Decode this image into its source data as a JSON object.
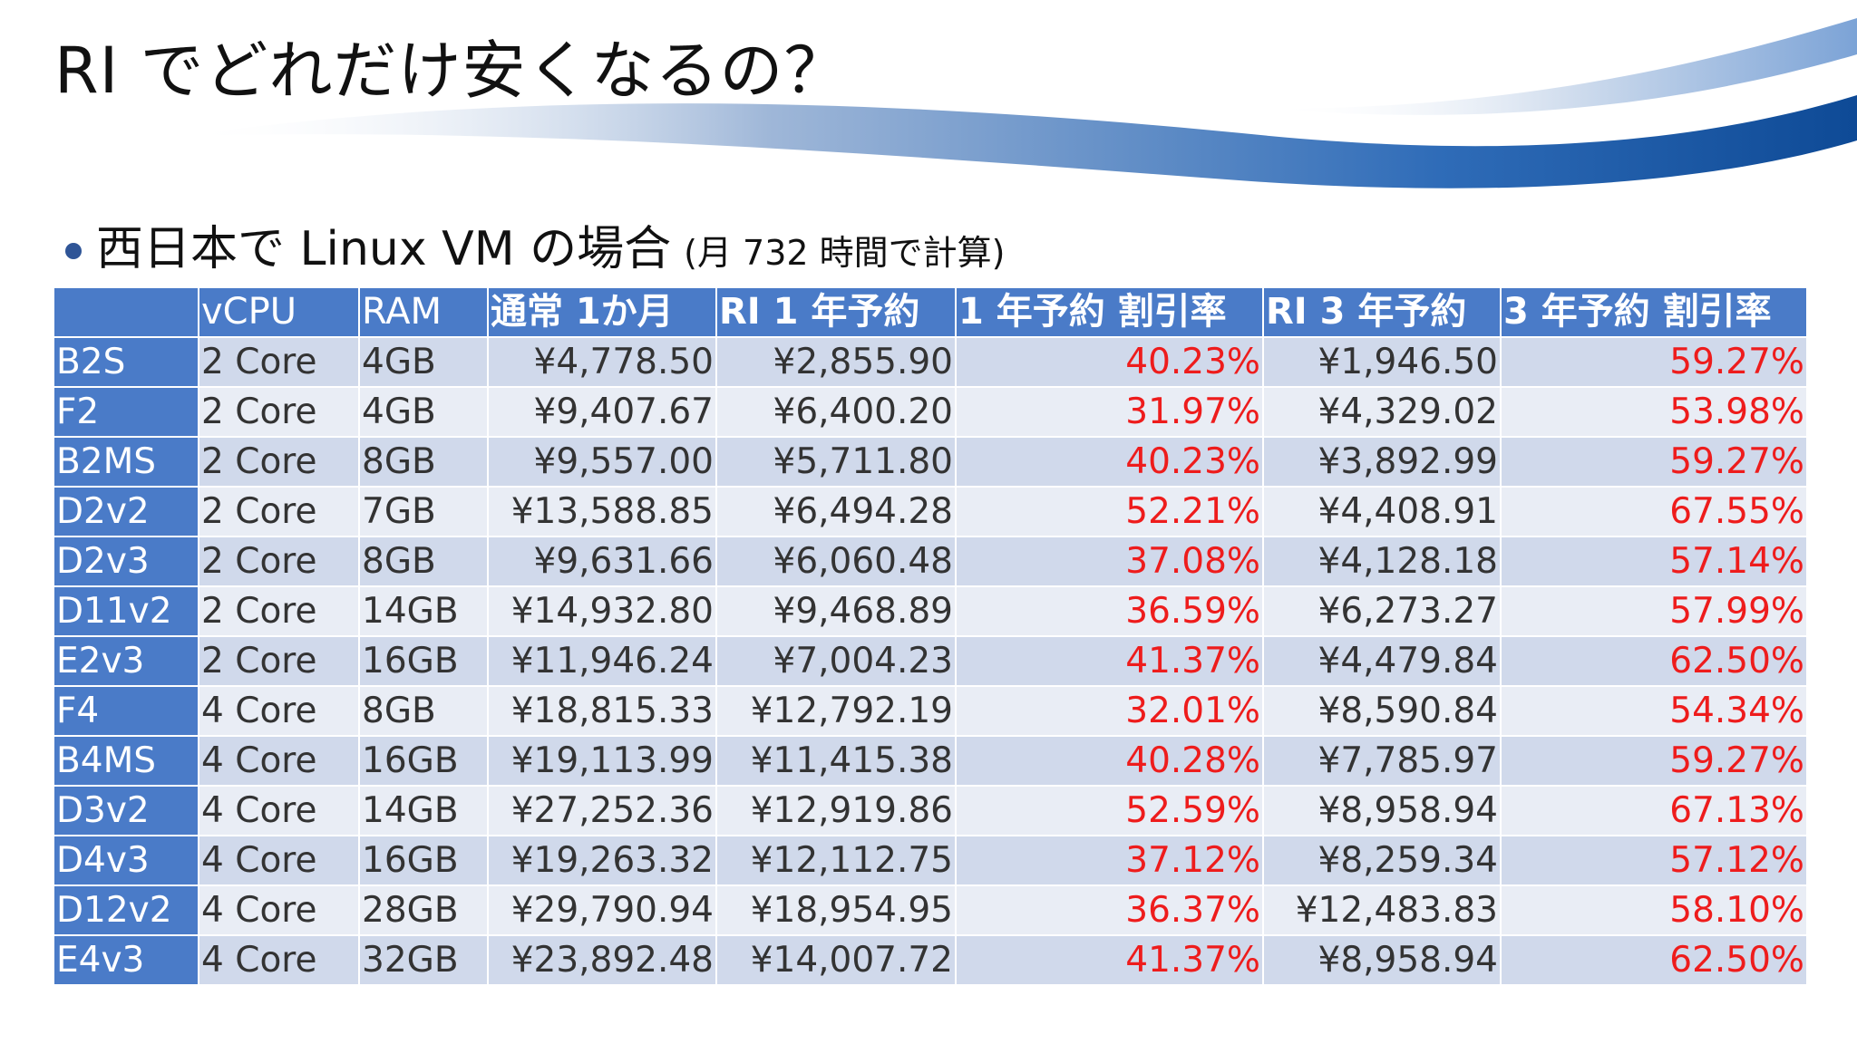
{
  "slide": {
    "title": "RI でどれだけ安くなるの？",
    "bullet_main": "西日本で Linux VM の場合",
    "bullet_note": "(月 732 時間で計算)",
    "colors": {
      "header_blue": "#4a7bc8",
      "row_dark": "#d0d9eb",
      "row_light": "#e9edf5",
      "percent_red": "#ee1c1c",
      "swoosh_blue": "#1f5fb0"
    }
  },
  "table": {
    "headers": [
      "",
      "vCPU",
      "RAM",
      "通常 1か月",
      "RI 1 年予約",
      "1 年予約 割引率",
      "RI 3 年予約",
      "3 年予約 割引率"
    ],
    "rows": [
      [
        "B2S",
        "2 Core",
        "4GB",
        "¥4,778.50",
        "¥2,855.90",
        "40.23%",
        "¥1,946.50",
        "59.27%"
      ],
      [
        "F2",
        "2 Core",
        "4GB",
        "¥9,407.67",
        "¥6,400.20",
        "31.97%",
        "¥4,329.02",
        "53.98%"
      ],
      [
        "B2MS",
        "2 Core",
        "8GB",
        "¥9,557.00",
        "¥5,711.80",
        "40.23%",
        "¥3,892.99",
        "59.27%"
      ],
      [
        "D2v2",
        "2 Core",
        "7GB",
        "¥13,588.85",
        "¥6,494.28",
        "52.21%",
        "¥4,408.91",
        "67.55%"
      ],
      [
        "D2v3",
        "2 Core",
        "8GB",
        "¥9,631.66",
        "¥6,060.48",
        "37.08%",
        "¥4,128.18",
        "57.14%"
      ],
      [
        "D11v2",
        "2 Core",
        "14GB",
        "¥14,932.80",
        "¥9,468.89",
        "36.59%",
        "¥6,273.27",
        "57.99%"
      ],
      [
        "E2v3",
        "2 Core",
        "16GB",
        "¥11,946.24",
        "¥7,004.23",
        "41.37%",
        "¥4,479.84",
        "62.50%"
      ],
      [
        "F4",
        "4 Core",
        "8GB",
        "¥18,815.33",
        "¥12,792.19",
        "32.01%",
        "¥8,590.84",
        "54.34%"
      ],
      [
        "B4MS",
        "4 Core",
        "16GB",
        "¥19,113.99",
        "¥11,415.38",
        "40.28%",
        "¥7,785.97",
        "59.27%"
      ],
      [
        "D3v2",
        "4 Core",
        "14GB",
        "¥27,252.36",
        "¥12,919.86",
        "52.59%",
        "¥8,958.94",
        "67.13%"
      ],
      [
        "D4v3",
        "4 Core",
        "16GB",
        "¥19,263.32",
        "¥12,112.75",
        "37.12%",
        "¥8,259.34",
        "57.12%"
      ],
      [
        "D12v2",
        "4 Core",
        "28GB",
        "¥29,790.94",
        "¥18,954.95",
        "36.37%",
        "¥12,483.83",
        "58.10%"
      ],
      [
        "E4v3",
        "4 Core",
        "32GB",
        "¥23,892.48",
        "¥14,007.72",
        "41.37%",
        "¥8,958.94",
        "62.50%"
      ]
    ]
  }
}
